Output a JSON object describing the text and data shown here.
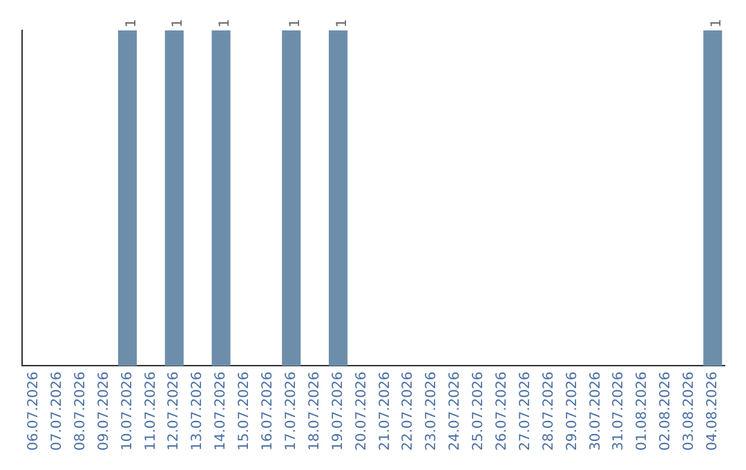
{
  "chart_data": {
    "type": "bar",
    "ylim": [
      0,
      1
    ],
    "tick_labels": "x",
    "categories": [
      "06.07.2026",
      "07.07.2026",
      "08.07.2026",
      "09.07.2026",
      "10.07.2026",
      "11.07.2026",
      "12.07.2026",
      "13.07.2026",
      "14.07.2026",
      "15.07.2026",
      "16.07.2026",
      "17.07.2026",
      "18.07.2026",
      "19.07.2026",
      "20.07.2026",
      "21.07.2026",
      "22.07.2026",
      "23.07.2026",
      "24.07.2026",
      "25.07.2026",
      "26.07.2026",
      "27.07.2026",
      "28.07.2026",
      "29.07.2026",
      "30.07.2026",
      "31.07.2026",
      "01.08.2026",
      "02.08.2026",
      "03.08.2026",
      "04.08.2026"
    ],
    "values": [
      0,
      0,
      0,
      0,
      1,
      0,
      1,
      0,
      1,
      0,
      0,
      1,
      0,
      1,
      0,
      0,
      0,
      0,
      0,
      0,
      0,
      0,
      0,
      0,
      0,
      0,
      0,
      0,
      0,
      1
    ],
    "value_labels": [
      null,
      null,
      null,
      null,
      "1",
      null,
      "1",
      null,
      "1",
      null,
      null,
      "1",
      null,
      "1",
      null,
      null,
      null,
      null,
      null,
      null,
      null,
      null,
      null,
      null,
      null,
      null,
      null,
      null,
      null,
      "1"
    ],
    "color": "#6d8eab",
    "grid": false,
    "legend": false
  }
}
